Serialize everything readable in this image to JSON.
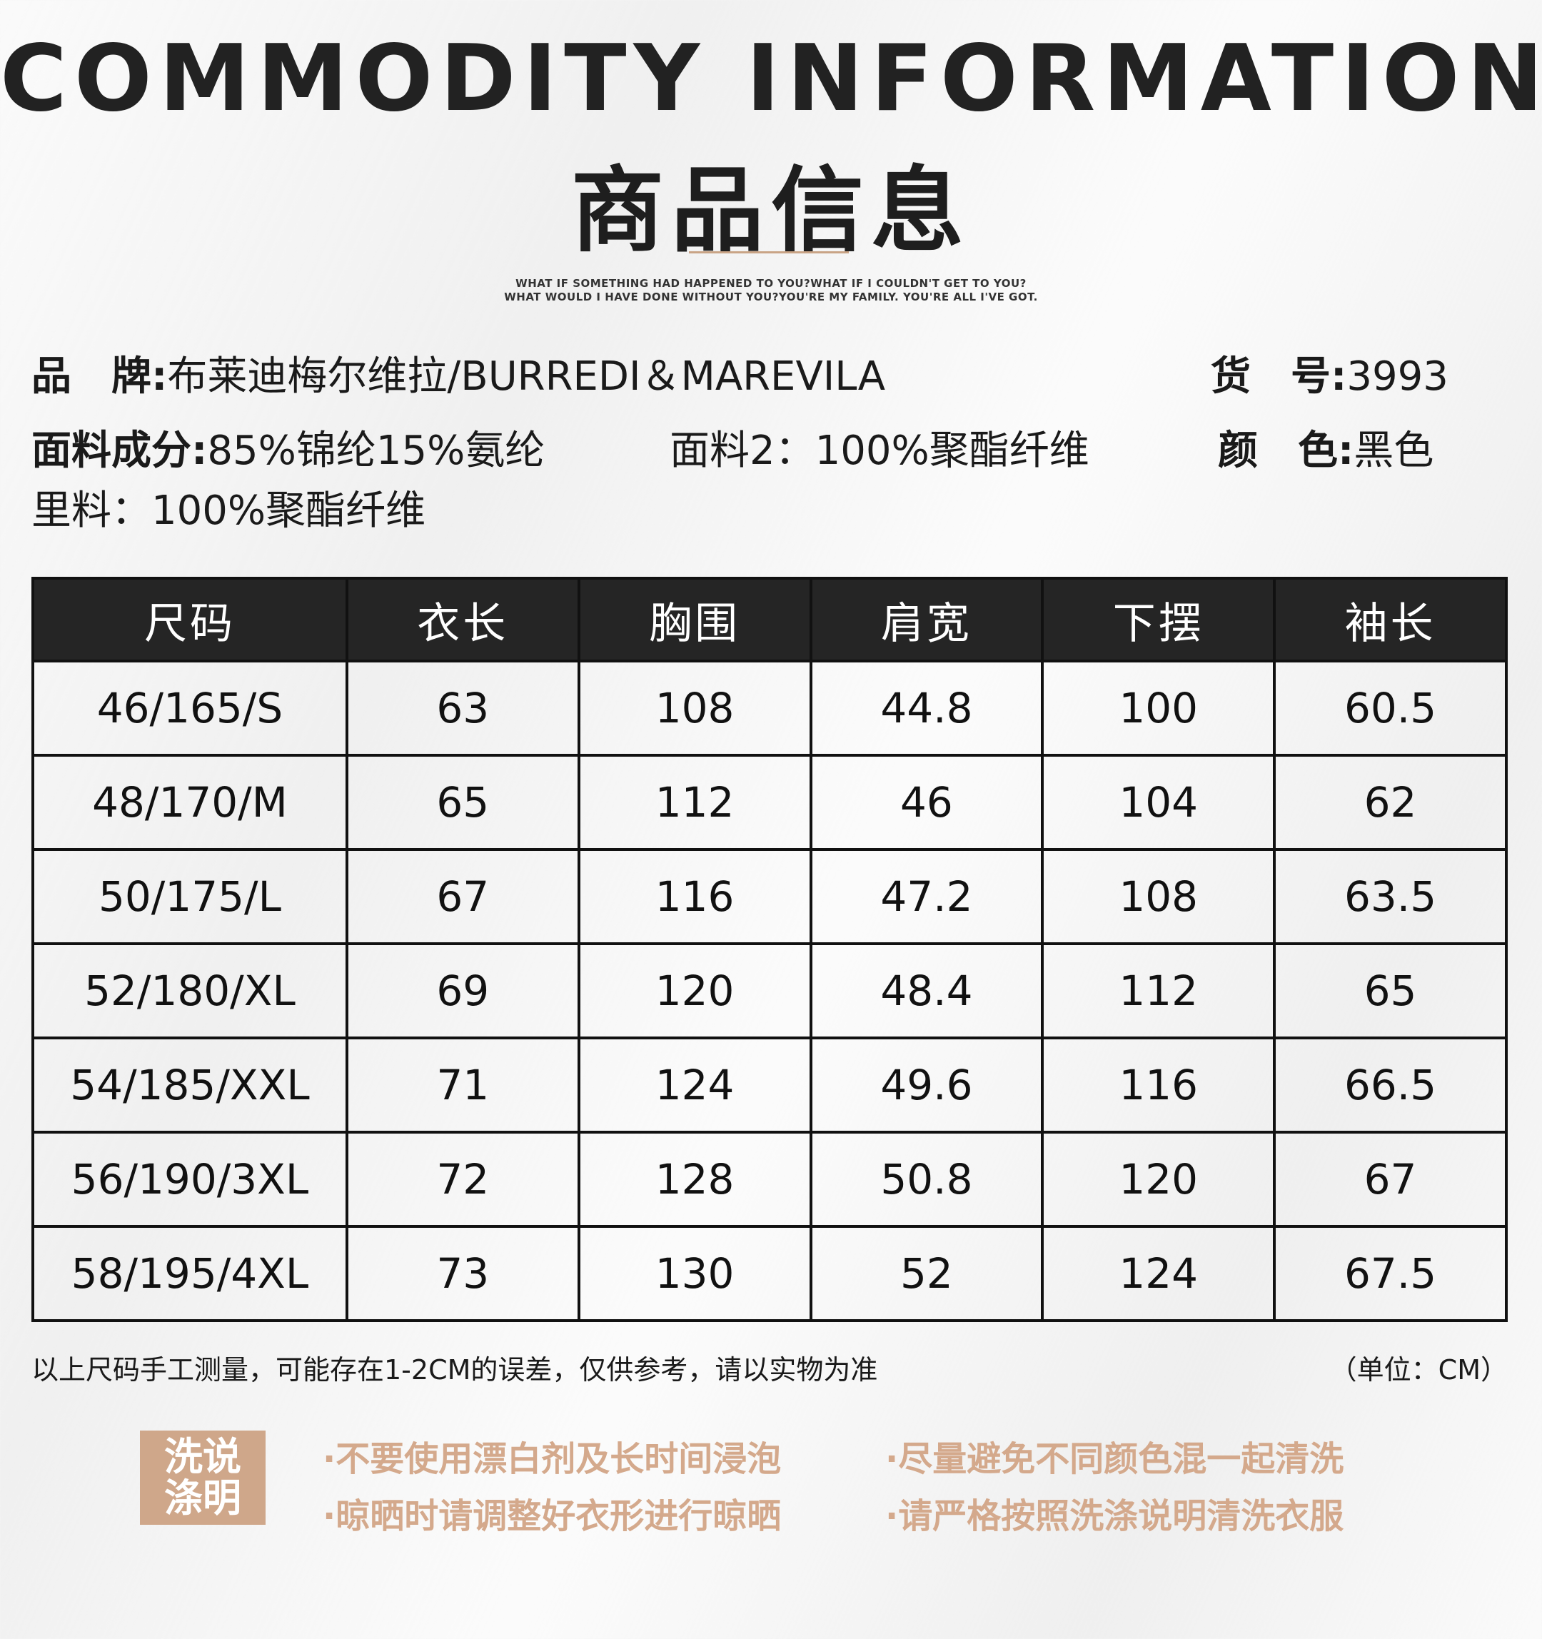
{
  "header": {
    "title_en": "COMMODITY INFORMATION",
    "title_zh": "商品信息",
    "tagline_1": "WHAT IF SOMETHING HAD HAPPENED TO YOU?WHAT IF I COULDN'T GET TO YOU?",
    "tagline_2": "WHAT WOULD I HAVE DONE WITHOUT YOU?YOU'RE MY FAMILY. YOU'RE ALL I'VE GOT."
  },
  "info": {
    "brand_label": "品　牌:",
    "brand_value": "布莱迪梅尔维拉/BURREDI＆MAREVILA",
    "item_no_label": "货　号:",
    "item_no_value": "3993",
    "fabric_label": "面料成分:",
    "fabric_value": "85%锦纶15%氨纶",
    "fabric2": "面料2：100%聚酯纤维",
    "color_label": "颜　色:",
    "color_value": "黑色",
    "lining": "里料：100%聚酯纤维"
  },
  "table": {
    "headers": [
      "尺码",
      "衣长",
      "胸围",
      "肩宽",
      "下摆",
      "袖长"
    ],
    "rows": [
      [
        "46/165/S",
        "63",
        "108",
        "44.8",
        "100",
        "60.5"
      ],
      [
        "48/170/M",
        "65",
        "112",
        "46",
        "104",
        "62"
      ],
      [
        "50/175/L",
        "67",
        "116",
        "47.2",
        "108",
        "63.5"
      ],
      [
        "52/180/XL",
        "69",
        "120",
        "48.4",
        "112",
        "65"
      ],
      [
        "54/185/XXL",
        "71",
        "124",
        "49.6",
        "116",
        "66.5"
      ],
      [
        "56/190/3XL",
        "72",
        "128",
        "50.8",
        "120",
        "67"
      ],
      [
        "58/195/4XL",
        "73",
        "130",
        "52",
        "124",
        "67.5"
      ]
    ]
  },
  "note": "以上尺码手工测量，可能存在1-2CM的误差，仅供参考，请以实物为准",
  "unit": "（单位：CM）",
  "wash": {
    "badge_line1": "洗说",
    "badge_line2": "涤明",
    "items": [
      "·不要使用漂白剂及长时间浸泡",
      "·尽量避免不同颜色混一起清洗",
      "·晾晒时请调整好衣形进行晾晒",
      "·请严格按照洗涤说明清洗衣服"
    ]
  }
}
